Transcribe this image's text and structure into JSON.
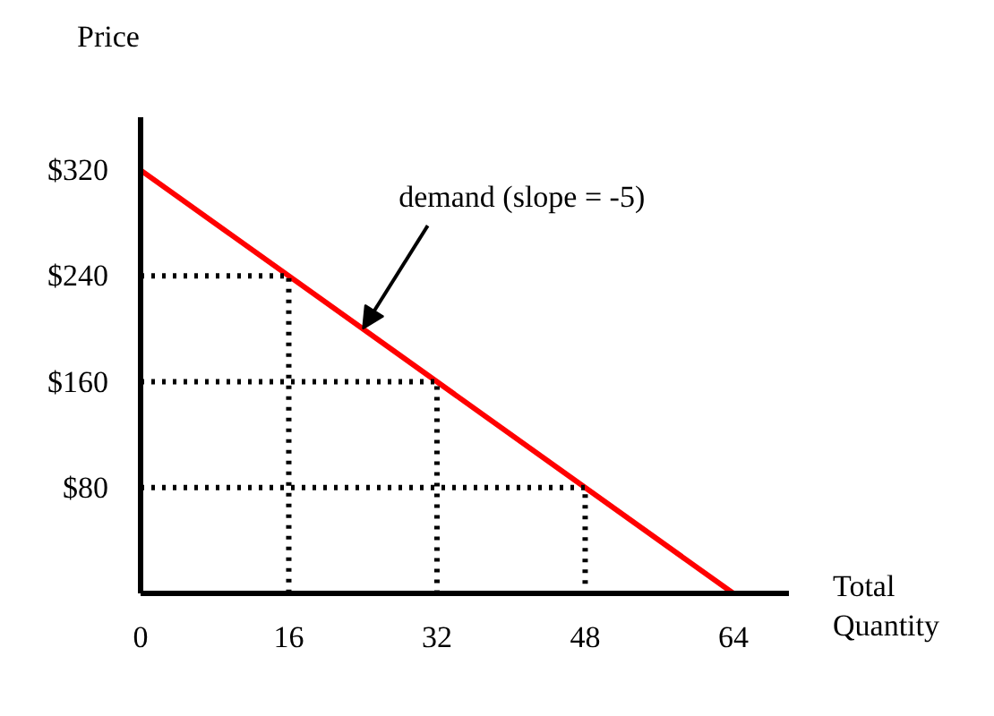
{
  "chart_data": {
    "type": "line",
    "xlabel": "Total Quantity",
    "ylabel": "Price",
    "xlim": [
      0,
      70
    ],
    "ylim": [
      0,
      360
    ],
    "xticks": [
      0,
      16,
      32,
      48,
      64
    ],
    "yticks": [
      {
        "value": 80,
        "label": "$80"
      },
      {
        "value": 160,
        "label": "$160"
      },
      {
        "value": 240,
        "label": "$240"
      },
      {
        "value": 320,
        "label": "$320"
      }
    ],
    "grid": false,
    "marker": "none",
    "series": [
      {
        "color": "#ff0000",
        "x": [
          0,
          64
        ],
        "values": [
          320,
          0
        ],
        "line_style": "solid"
      },
      {
        "color": "#000000",
        "x": [
          0,
          16,
          16
        ],
        "values": [
          240,
          240,
          0
        ],
        "line_style": "dotted"
      },
      {
        "color": "#000000",
        "x": [
          0,
          32,
          32
        ],
        "values": [
          160,
          160,
          0
        ],
        "line_style": "dotted"
      },
      {
        "color": "#000000",
        "x": [
          0,
          48,
          48
        ],
        "values": [
          80,
          80,
          0
        ],
        "line_style": "dotted"
      }
    ],
    "annotations": [
      {
        "text": "demand (slope = -5)",
        "x": 24,
        "y": 200
      }
    ]
  }
}
